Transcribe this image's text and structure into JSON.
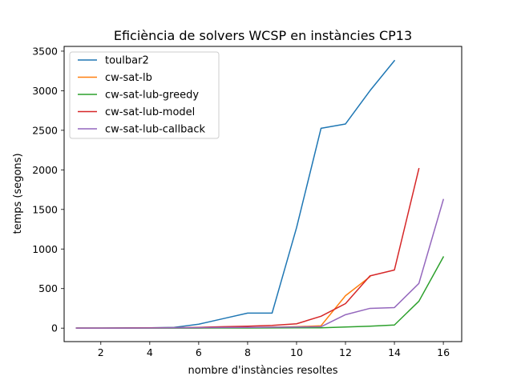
{
  "chart_data": {
    "type": "line",
    "title": "Eficiència de solvers WCSP en instàncies CP13",
    "xlabel": "nombre d'instàncies resoltes",
    "ylabel": "temps (segons)",
    "xlim": [
      0.5,
      16.75
    ],
    "ylim": [
      -170,
      3560
    ],
    "xticks": [
      2,
      4,
      6,
      8,
      10,
      12,
      14,
      16
    ],
    "yticks": [
      0,
      500,
      1000,
      1500,
      2000,
      2500,
      3000,
      3500
    ],
    "grid": false,
    "legend_position": "top-left",
    "series": [
      {
        "name": "toulbar2",
        "color": "#1f77b4",
        "x": [
          1,
          2,
          3,
          4,
          5,
          6,
          7,
          8,
          9,
          10,
          11,
          12,
          13,
          14
        ],
        "y": [
          0,
          1,
          3,
          5,
          10,
          50,
          120,
          190,
          190,
          1270,
          2525,
          2580,
          3000,
          3380
        ]
      },
      {
        "name": "cw-sat-lb",
        "color": "#ff7f0e",
        "x": [
          1,
          2,
          3,
          4,
          5,
          6,
          7,
          8,
          9,
          10,
          11,
          12,
          13
        ],
        "y": [
          0,
          0,
          1,
          1,
          2,
          3,
          5,
          8,
          12,
          18,
          30,
          410,
          650
        ]
      },
      {
        "name": "cw-sat-lub-greedy",
        "color": "#2ca02c",
        "x": [
          1,
          2,
          3,
          4,
          5,
          6,
          7,
          8,
          9,
          10,
          11,
          12,
          13,
          14,
          15,
          16
        ],
        "y": [
          0,
          0,
          0,
          0,
          1,
          1,
          2,
          2,
          3,
          4,
          5,
          15,
          25,
          40,
          340,
          900
        ]
      },
      {
        "name": "cw-sat-lub-model",
        "color": "#d62728",
        "x": [
          1,
          2,
          3,
          4,
          5,
          6,
          7,
          8,
          9,
          10,
          11,
          12,
          13,
          14,
          15
        ],
        "y": [
          0,
          1,
          2,
          4,
          6,
          10,
          18,
          25,
          35,
          55,
          150,
          310,
          660,
          735,
          2015
        ]
      },
      {
        "name": "cw-sat-lub-callback",
        "color": "#9467bd",
        "x": [
          1,
          2,
          3,
          4,
          5,
          6,
          7,
          8,
          9,
          10,
          11,
          12,
          13,
          14,
          15,
          16
        ],
        "y": [
          0,
          0,
          1,
          2,
          4,
          6,
          8,
          10,
          12,
          14,
          18,
          170,
          250,
          260,
          565,
          1625
        ]
      }
    ]
  }
}
